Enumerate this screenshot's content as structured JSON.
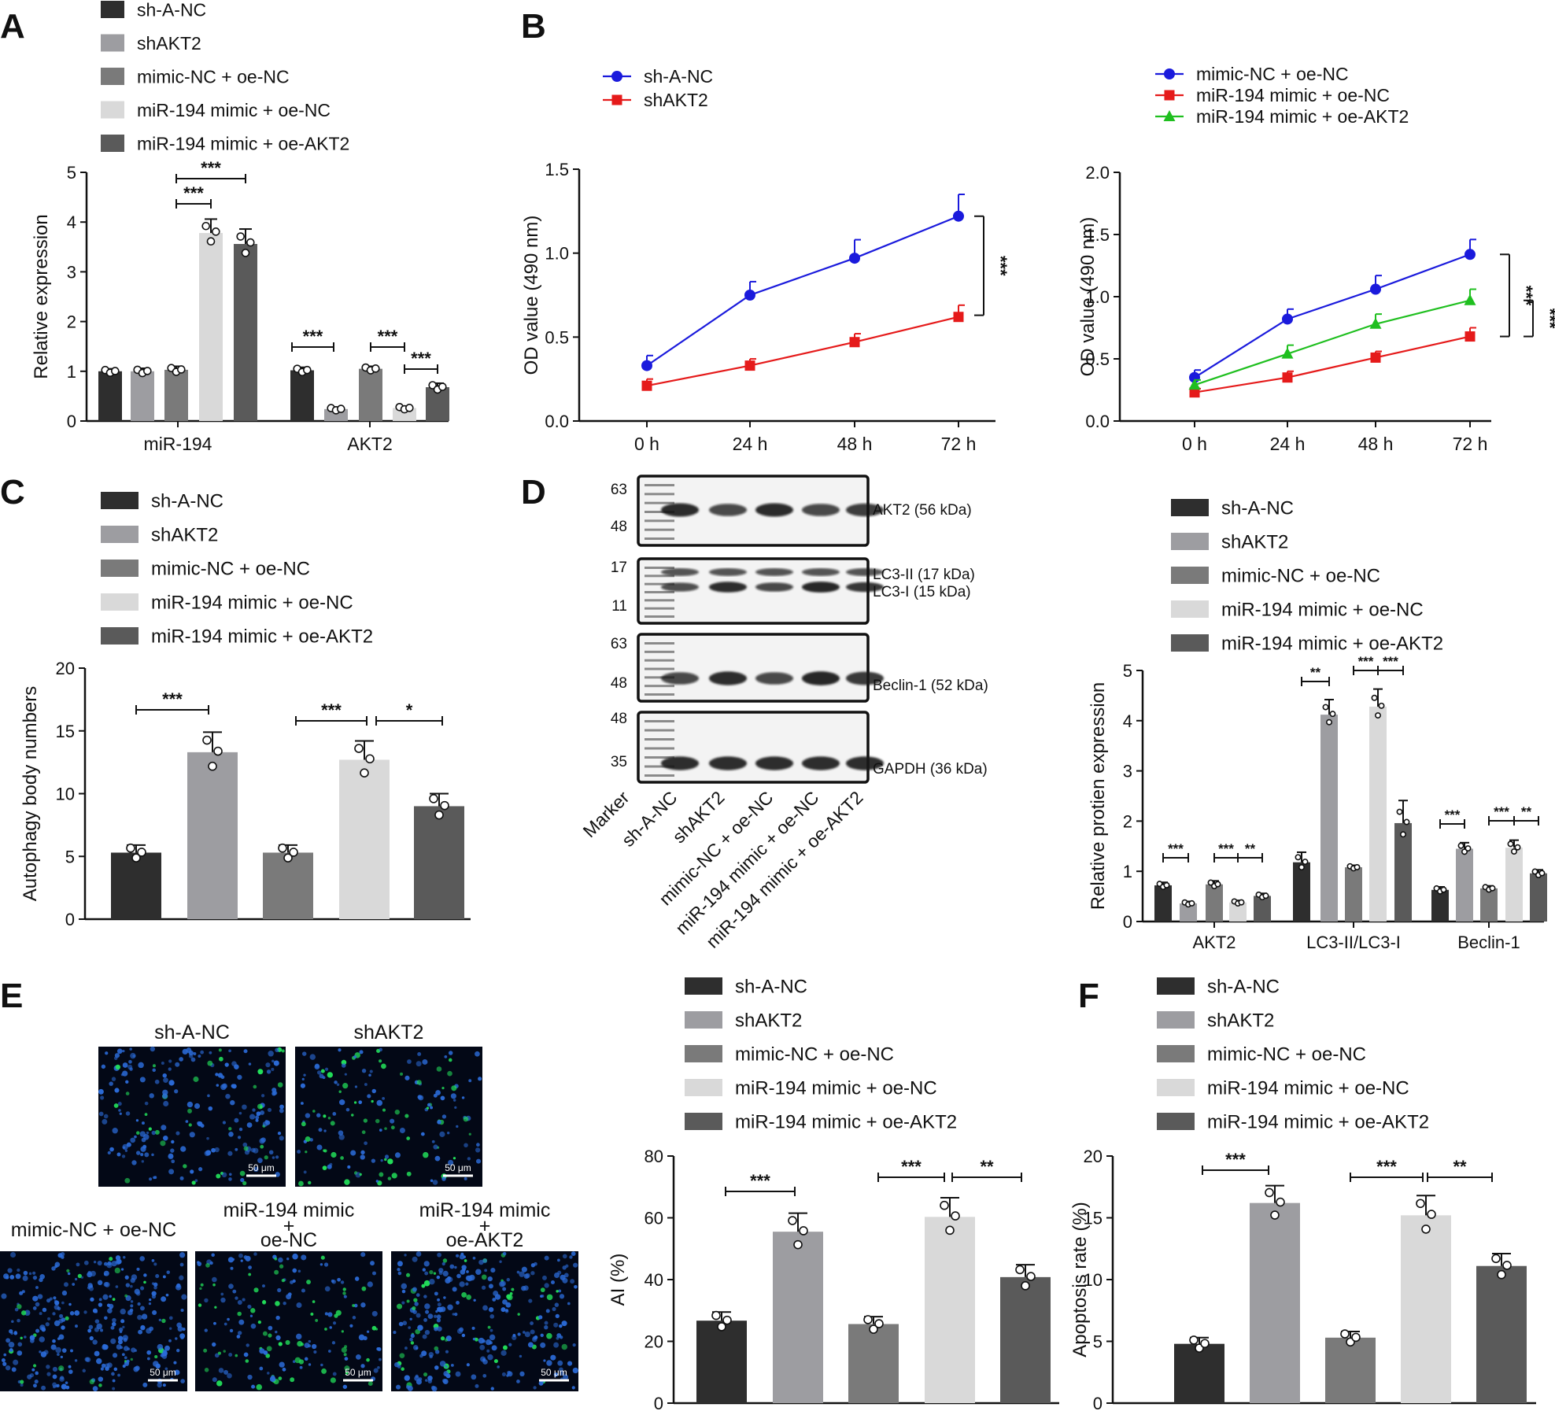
{
  "colors": {
    "sh-A-NC": "#2e2e2e",
    "shAKT2": "#9d9da1",
    "mimic-NC + oe-NC": "#7a7a7a",
    "miR-194 mimic + oe-NC": "#d9d9d9",
    "miR-194 mimic + oe-AKT2": "#5a5a5a",
    "line_blue": "#1a1adc",
    "line_red": "#e51a1a",
    "line_green": "#1fbf1f"
  },
  "groups": [
    "sh-A-NC",
    "shAKT2",
    "mimic-NC + oe-NC",
    "miR-194 mimic + oe-NC",
    "miR-194 mimic + oe-AKT2"
  ],
  "panel_labels": [
    "A",
    "B",
    "C",
    "D",
    "E",
    "F"
  ],
  "chart_data": [
    {
      "id": "A",
      "type": "bar",
      "ylabel": "Relative expression",
      "ylim": [
        0,
        5
      ],
      "yticks": [
        0,
        1,
        2,
        3,
        4,
        5
      ],
      "categories": [
        "miR-194",
        "AKT2"
      ],
      "series": [
        {
          "name": "sh-A-NC",
          "values": [
            1.0,
            1.02
          ],
          "err": [
            0.05,
            0.06
          ]
        },
        {
          "name": "shAKT2",
          "values": [
            1.0,
            0.24
          ],
          "err": [
            0.06,
            0.04
          ]
        },
        {
          "name": "mimic-NC + oe-NC",
          "values": [
            1.03,
            1.05
          ],
          "err": [
            0.07,
            0.05
          ]
        },
        {
          "name": "miR-194 mimic + oe-NC",
          "values": [
            3.78,
            0.26
          ],
          "err": [
            0.28,
            0.04
          ]
        },
        {
          "name": "miR-194 mimic + oe-AKT2",
          "values": [
            3.56,
            0.68
          ],
          "err": [
            0.3,
            0.08
          ]
        }
      ],
      "annotations": [
        "***",
        "***",
        "***",
        "***",
        "***"
      ]
    },
    {
      "id": "B1",
      "type": "line",
      "ylabel": "OD value (490 nm)",
      "ylim": [
        0,
        1.5
      ],
      "yticks": [
        0.0,
        0.5,
        1.0,
        1.5
      ],
      "x": [
        "0 h",
        "24 h",
        "48 h",
        "72 h"
      ],
      "series": [
        {
          "name": "sh-A-NC",
          "marker": "circle",
          "color": "#1a1adc",
          "values": [
            0.33,
            0.75,
            0.97,
            1.22
          ],
          "err": [
            0.06,
            0.08,
            0.11,
            0.13
          ]
        },
        {
          "name": "shAKT2",
          "marker": "square",
          "color": "#e51a1a",
          "values": [
            0.21,
            0.33,
            0.47,
            0.62
          ],
          "err": [
            0.04,
            0.04,
            0.05,
            0.07
          ]
        }
      ],
      "annotations": [
        "***"
      ]
    },
    {
      "id": "B2",
      "type": "line",
      "ylabel": "OD value (490 nm)",
      "ylim": [
        0,
        2.0
      ],
      "yticks": [
        0.0,
        0.5,
        1.0,
        1.5,
        2.0
      ],
      "x": [
        "0 h",
        "24 h",
        "48 h",
        "72 h"
      ],
      "series": [
        {
          "name": "mimic-NC + oe-NC",
          "marker": "circle",
          "color": "#1a1adc",
          "values": [
            0.35,
            0.82,
            1.06,
            1.34
          ],
          "err": [
            0.06,
            0.08,
            0.11,
            0.12
          ]
        },
        {
          "name": "miR-194 mimic + oe-NC",
          "marker": "square",
          "color": "#e51a1a",
          "values": [
            0.23,
            0.35,
            0.51,
            0.68
          ],
          "err": [
            0.03,
            0.05,
            0.05,
            0.07
          ]
        },
        {
          "name": "miR-194 mimic + oe-AKT2",
          "marker": "triangle",
          "color": "#1fbf1f",
          "values": [
            0.29,
            0.54,
            0.78,
            0.97
          ],
          "err": [
            0.04,
            0.07,
            0.08,
            0.09
          ]
        }
      ],
      "annotations": [
        "***",
        "***"
      ]
    },
    {
      "id": "C",
      "type": "bar",
      "ylabel": "Autophagy body numbers",
      "ylim": [
        0,
        20
      ],
      "yticks": [
        0,
        5,
        10,
        15,
        20
      ],
      "categories": [
        "sh-A-NC",
        "shAKT2",
        "mimic-NC + oe-NC",
        "miR-194 mimic + oe-NC",
        "miR-194 mimic + oe-AKT2"
      ],
      "values": [
        5.3,
        13.3,
        5.3,
        12.7,
        9.0
      ],
      "err": [
        0.6,
        1.6,
        0.6,
        1.5,
        1.0
      ],
      "annotations": [
        "***",
        "***",
        "*"
      ]
    },
    {
      "id": "D",
      "type": "bar",
      "ylabel": "Relative protien expression",
      "ylim": [
        0,
        5
      ],
      "yticks": [
        0,
        1,
        2,
        3,
        4,
        5
      ],
      "categories": [
        "AKT2",
        "LC3-II/LC3-I",
        "Beclin-1"
      ],
      "series": [
        {
          "name": "sh-A-NC",
          "values": [
            0.72,
            1.18,
            0.63
          ],
          "err": [
            0.06,
            0.2,
            0.06
          ]
        },
        {
          "name": "shAKT2",
          "values": [
            0.36,
            4.12,
            1.45
          ],
          "err": [
            0.04,
            0.3,
            0.12
          ]
        },
        {
          "name": "mimic-NC + oe-NC",
          "values": [
            0.74,
            1.08,
            0.66
          ],
          "err": [
            0.07,
            0.04,
            0.05
          ]
        },
        {
          "name": "miR-194 mimic + oe-NC",
          "values": [
            0.38,
            4.28,
            1.47
          ],
          "err": [
            0.04,
            0.35,
            0.15
          ]
        },
        {
          "name": "miR-194 mimic + oe-AKT2",
          "values": [
            0.51,
            1.96,
            0.96
          ],
          "err": [
            0.05,
            0.45,
            0.07
          ]
        }
      ],
      "annotations": [
        "***",
        "***",
        "**",
        "**",
        "***",
        "***",
        "***",
        "***",
        "**"
      ]
    },
    {
      "id": "E",
      "type": "bar",
      "ylabel": "AI (%)",
      "ylim": [
        0,
        80
      ],
      "yticks": [
        0,
        20,
        40,
        60,
        80
      ],
      "categories": [
        "sh-A-NC",
        "shAKT2",
        "mimic-NC + oe-NC",
        "miR-194 mimic + oe-NC",
        "miR-194 mimic + oe-AKT2"
      ],
      "values": [
        26.7,
        55.5,
        25.6,
        60.3,
        40.8
      ],
      "err": [
        2.8,
        6.0,
        2.4,
        6.2,
        4.0
      ],
      "annotations": [
        "***",
        "***",
        "**"
      ]
    },
    {
      "id": "F",
      "type": "bar",
      "ylabel": "Apoptosis rate (%)",
      "ylim": [
        0,
        20
      ],
      "yticks": [
        0,
        5,
        10,
        15,
        20
      ],
      "categories": [
        "sh-A-NC",
        "shAKT2",
        "mimic-NC + oe-NC",
        "miR-194 mimic + oe-NC",
        "miR-194 mimic + oe-AKT2"
      ],
      "values": [
        4.8,
        16.2,
        5.3,
        15.2,
        11.1
      ],
      "err": [
        0.5,
        1.4,
        0.5,
        1.6,
        1.0
      ],
      "annotations": [
        "***",
        "***",
        "**"
      ]
    }
  ],
  "western_blot": {
    "marker_label": "Marker",
    "lane_labels": [
      "sh-A-NC",
      "shAKT2",
      "mimic-NC + oe-NC",
      "miR-194 mimic + oe-NC",
      "miR-194 mimic + oe-AKT2"
    ],
    "blots": [
      {
        "marker_top": "63",
        "marker_bottom": "48",
        "bands": [
          "AKT2 (56 kDa)"
        ],
        "intensity": [
          0.85,
          0.6,
          0.85,
          0.6,
          0.7
        ]
      },
      {
        "marker_top": "17",
        "marker_bottom": "11",
        "bands": [
          "LC3-II (17 kDa)",
          "LC3-I (15 kDa)"
        ],
        "intensity": [
          0.55,
          0.9,
          0.6,
          0.95,
          0.75
        ]
      },
      {
        "marker_top": "63",
        "marker_bottom": "48",
        "bands": [
          "Beclin-1 (52 kDa)"
        ],
        "intensity": [
          0.6,
          0.9,
          0.6,
          0.95,
          0.8
        ]
      },
      {
        "marker_top": "48",
        "marker_bottom": "35",
        "bands": [
          "GAPDH (36 kDa)"
        ],
        "intensity": [
          0.9,
          0.9,
          0.9,
          0.9,
          0.9
        ]
      }
    ]
  },
  "micrographs": {
    "top_row": [
      "sh-A-NC",
      "shAKT2"
    ],
    "bottom_row": [
      "mimic-NC + oe-NC",
      "miR-194 mimic\n+\noe-NC",
      "miR-194 mimic\n+\noe-AKT2"
    ],
    "scale_bar": "50 μm"
  }
}
